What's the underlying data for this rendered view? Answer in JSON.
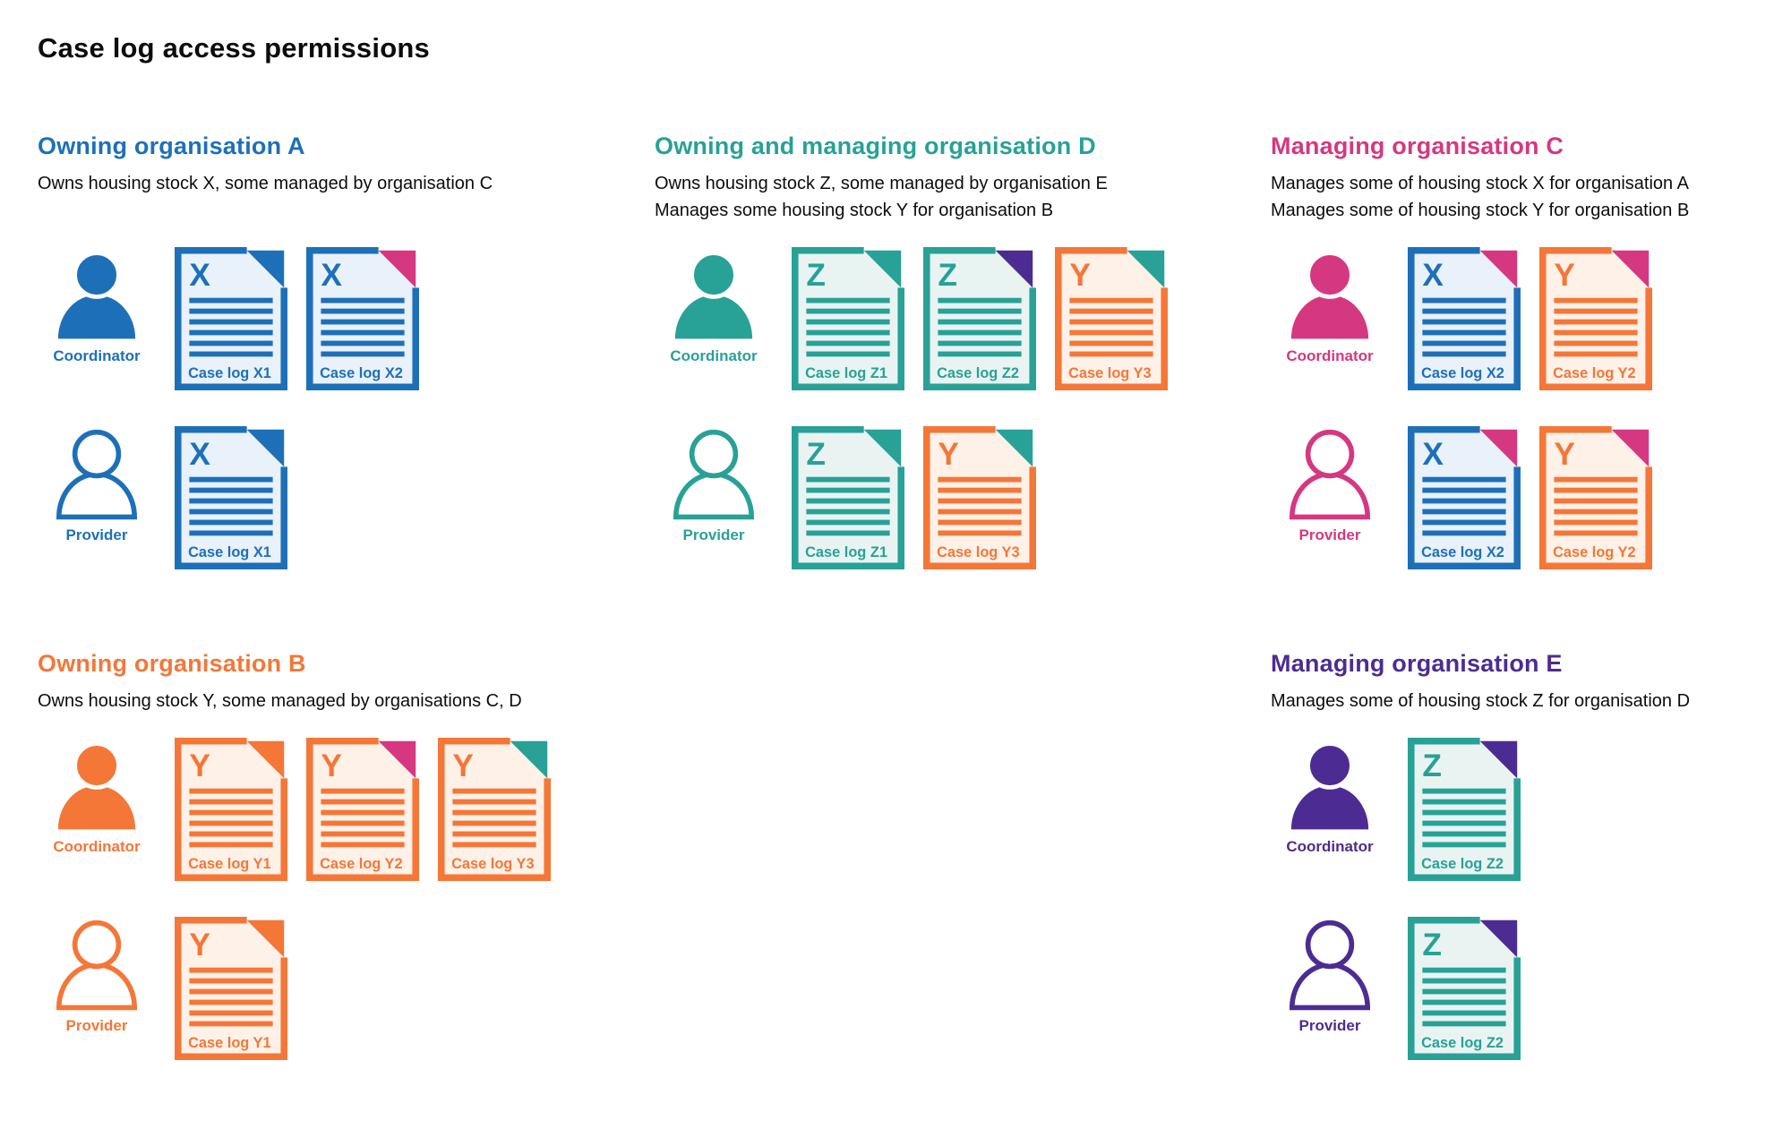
{
  "page": {
    "title": "Case log access permissions"
  },
  "colors": {
    "blue": "#1d70b8",
    "teal": "#28a197",
    "pink": "#d53880",
    "orange": "#f47738",
    "purple": "#4c2c92",
    "text": "#0b0c0c",
    "blue_tint": "#e9f1fa",
    "teal_tint": "#e9f4f2",
    "orange_tint": "#fdf1e8"
  },
  "sections": [
    {
      "id": "org-a",
      "slot": "r1c1",
      "color": "blue",
      "heading": "Owning organisation A",
      "description": [
        "Owns housing stock X, some managed by organisation C"
      ],
      "rows": [
        {
          "role": "Coordinator",
          "style": "filled",
          "docs": [
            {
              "letter": "X",
              "label": "Case log X1",
              "doc_color": "blue",
              "fold_color": "blue"
            },
            {
              "letter": "X",
              "label": "Case log X2",
              "doc_color": "blue",
              "fold_color": "pink"
            }
          ]
        },
        {
          "role": "Provider",
          "style": "outline",
          "docs": [
            {
              "letter": "X",
              "label": "Case log X1",
              "doc_color": "blue",
              "fold_color": "blue"
            }
          ]
        }
      ]
    },
    {
      "id": "org-d",
      "slot": "r1c2",
      "color": "teal",
      "heading": "Owning and managing organisation D",
      "description": [
        "Owns housing stock Z, some managed by organisation E",
        "Manages some housing stock Y for organisation B"
      ],
      "rows": [
        {
          "role": "Coordinator",
          "style": "filled",
          "docs": [
            {
              "letter": "Z",
              "label": "Case log Z1",
              "doc_color": "teal",
              "fold_color": "teal"
            },
            {
              "letter": "Z",
              "label": "Case log Z2",
              "doc_color": "teal",
              "fold_color": "purple"
            },
            {
              "letter": "Y",
              "label": "Case log Y3",
              "doc_color": "orange",
              "fold_color": "teal"
            }
          ]
        },
        {
          "role": "Provider",
          "style": "outline",
          "docs": [
            {
              "letter": "Z",
              "label": "Case log Z1",
              "doc_color": "teal",
              "fold_color": "teal"
            },
            {
              "letter": "Y",
              "label": "Case log Y3",
              "doc_color": "orange",
              "fold_color": "teal"
            }
          ]
        }
      ]
    },
    {
      "id": "org-c",
      "slot": "r1c3",
      "color": "pink",
      "heading": "Managing organisation C",
      "description": [
        "Manages some of housing stock X for organisation A",
        "Manages some of housing stock Y for organisation B"
      ],
      "rows": [
        {
          "role": "Coordinator",
          "style": "filled",
          "docs": [
            {
              "letter": "X",
              "label": "Case log X2",
              "doc_color": "blue",
              "fold_color": "pink"
            },
            {
              "letter": "Y",
              "label": "Case log Y2",
              "doc_color": "orange",
              "fold_color": "pink"
            }
          ]
        },
        {
          "role": "Provider",
          "style": "outline",
          "docs": [
            {
              "letter": "X",
              "label": "Case log X2",
              "doc_color": "blue",
              "fold_color": "pink"
            },
            {
              "letter": "Y",
              "label": "Case log Y2",
              "doc_color": "orange",
              "fold_color": "pink"
            }
          ]
        }
      ]
    },
    {
      "id": "org-b",
      "slot": "r2c1",
      "color": "orange",
      "heading": "Owning organisation B",
      "description": [
        "Owns housing stock Y, some managed by organisations C, D"
      ],
      "rows": [
        {
          "role": "Coordinator",
          "style": "filled",
          "docs": [
            {
              "letter": "Y",
              "label": "Case log Y1",
              "doc_color": "orange",
              "fold_color": "orange"
            },
            {
              "letter": "Y",
              "label": "Case log Y2",
              "doc_color": "orange",
              "fold_color": "pink"
            },
            {
              "letter": "Y",
              "label": "Case log Y3",
              "doc_color": "orange",
              "fold_color": "teal"
            }
          ]
        },
        {
          "role": "Provider",
          "style": "outline",
          "docs": [
            {
              "letter": "Y",
              "label": "Case log Y1",
              "doc_color": "orange",
              "fold_color": "orange"
            }
          ]
        }
      ]
    },
    {
      "id": "org-e",
      "slot": "r2c3",
      "color": "purple",
      "heading": "Managing organisation E",
      "description": [
        "Manages some of housing stock Z for organisation D"
      ],
      "rows": [
        {
          "role": "Coordinator",
          "style": "filled",
          "docs": [
            {
              "letter": "Z",
              "label": "Case log Z2",
              "doc_color": "teal",
              "fold_color": "purple"
            }
          ]
        },
        {
          "role": "Provider",
          "style": "outline",
          "docs": [
            {
              "letter": "Z",
              "label": "Case log Z2",
              "doc_color": "teal",
              "fold_color": "purple"
            }
          ]
        }
      ]
    }
  ]
}
